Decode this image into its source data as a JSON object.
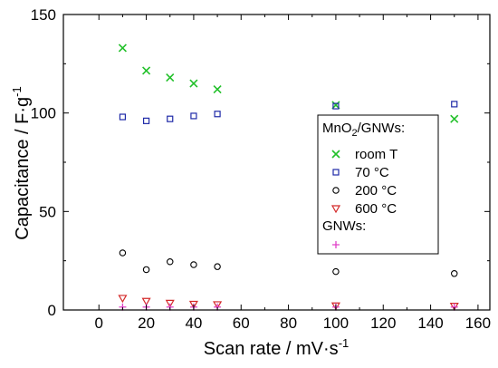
{
  "chart_data": {
    "type": "scatter",
    "title": "",
    "xlabel": "Scan rate / mV·s",
    "xlabel_sup": "-1",
    "ylabel": "Capacitance / F·g",
    "ylabel_sup": "-1",
    "xlim": [
      -15,
      165
    ],
    "ylim": [
      0,
      150
    ],
    "xticks": [
      0,
      20,
      40,
      60,
      80,
      100,
      120,
      140,
      160
    ],
    "yticks": [
      0,
      50,
      100,
      150
    ],
    "grid": false,
    "legend_position": "right-center",
    "legend_groups": [
      {
        "heading_main": "MnO",
        "heading_sub": "2",
        "heading_rest": "/GNWs:",
        "series_indices": [
          0,
          1,
          2,
          3
        ]
      },
      {
        "heading_main": "GNWs:",
        "heading_sub": "",
        "heading_rest": "",
        "series_indices": [
          4
        ]
      }
    ],
    "series": [
      {
        "name": "room T",
        "marker": "x",
        "color": "#22c02a",
        "x": [
          10,
          20,
          30,
          40,
          50,
          100,
          150
        ],
        "y": [
          133,
          121.5,
          118,
          115,
          112,
          104,
          97
        ]
      },
      {
        "name": "70 °C",
        "marker": "square",
        "color": "#1f2aa8",
        "x": [
          10,
          20,
          30,
          40,
          50,
          100,
          150
        ],
        "y": [
          98,
          96,
          97,
          98.5,
          99.5,
          103.5,
          104.5
        ]
      },
      {
        "name": "200 °C",
        "marker": "circle",
        "color": "#000000",
        "x": [
          10,
          20,
          30,
          40,
          50,
          100,
          150
        ],
        "y": [
          29,
          20.5,
          24.5,
          23,
          22,
          19.5,
          18.5
        ]
      },
      {
        "name": "600 °C",
        "marker": "triangle-down",
        "color": "#d42a2a",
        "x": [
          10,
          20,
          30,
          40,
          50,
          100,
          150
        ],
        "y": [
          6,
          4.5,
          3.5,
          3,
          2.8,
          2.2,
          2
        ]
      },
      {
        "name": "",
        "marker": "plus",
        "color": "#e040c8",
        "x": [
          10,
          20,
          30,
          40,
          50,
          100,
          150
        ],
        "y": [
          1.5,
          1.5,
          1.5,
          1.5,
          1.5,
          1.5,
          1.5
        ]
      }
    ]
  }
}
